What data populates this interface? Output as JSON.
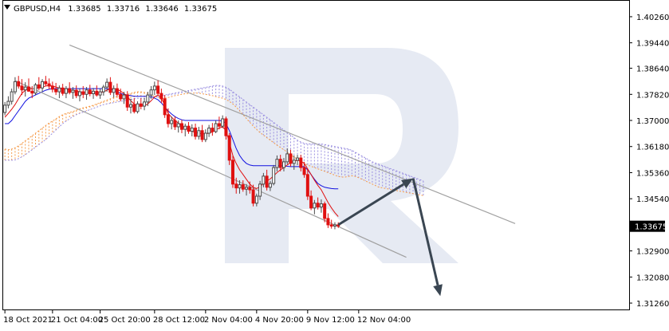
{
  "header": {
    "symbol": "GBPUSD,H4",
    "open": "1.33685",
    "high": "1.33716",
    "low": "1.33646",
    "close": "1.33675"
  },
  "icons": {
    "collapse": "triangle-down-icon",
    "watermark": "r-logo-watermark"
  },
  "colors": {
    "bull_candle": "#4a4a4a",
    "bear_candle": "#e01010",
    "tenkan": "#e01010",
    "kijun": "#1010e0",
    "cloud_a": "#f59b4a",
    "cloud_b": "#9a8fe0",
    "channel": "#a0a0a0",
    "arrow": "#3a4652",
    "watermark": "#dde3ef"
  },
  "chart_data": {
    "type": "candlestick",
    "symbol": "GBPUSD",
    "timeframe": "H4",
    "current_price": 1.33675,
    "current_price_label": "1.33675",
    "y_tick_labels": [
      "1.40260",
      "1.39440",
      "1.38640",
      "1.37820",
      "1.37000",
      "1.36180",
      "1.35360",
      "1.34540",
      "1.33675",
      "1.32900",
      "1.32080",
      "1.31260"
    ],
    "y_ticks": [
      1.4026,
      1.3944,
      1.3864,
      1.3782,
      1.37,
      1.3618,
      1.3536,
      1.3454,
      1.329,
      1.3208,
      1.3126
    ],
    "ylim": [
      1.3106,
      1.4076
    ],
    "x_tick_labels": [
      "18 Oct 2021",
      "21 Oct 04:00",
      "25 Oct 20:00",
      "28 Oct 12:00",
      "2 Nov 04:00",
      "4 Nov 20:00",
      "9 Nov 12:00",
      "12 Nov 04:00"
    ],
    "x_tick_bars": [
      0,
      14,
      28,
      44,
      59,
      74,
      89,
      104
    ],
    "total_slots": 184,
    "candles": [
      [
        1.3725,
        1.3758,
        1.3716,
        1.3748
      ],
      [
        1.3748,
        1.3776,
        1.3738,
        1.376
      ],
      [
        1.376,
        1.38,
        1.375,
        1.379
      ],
      [
        1.379,
        1.3836,
        1.3782,
        1.3822
      ],
      [
        1.3822,
        1.384,
        1.38,
        1.3808
      ],
      [
        1.3808,
        1.383,
        1.378,
        1.3796
      ],
      [
        1.3796,
        1.382,
        1.3775,
        1.3805
      ],
      [
        1.3805,
        1.3832,
        1.379,
        1.3792
      ],
      [
        1.3792,
        1.3808,
        1.377,
        1.3786
      ],
      [
        1.3786,
        1.3818,
        1.378,
        1.3812
      ],
      [
        1.3812,
        1.3836,
        1.3795,
        1.3802
      ],
      [
        1.3802,
        1.383,
        1.379,
        1.3822
      ],
      [
        1.3822,
        1.384,
        1.3808,
        1.3815
      ],
      [
        1.3815,
        1.3832,
        1.3798,
        1.3808
      ],
      [
        1.3808,
        1.3822,
        1.3788,
        1.3798
      ],
      [
        1.3798,
        1.3818,
        1.378,
        1.379
      ],
      [
        1.379,
        1.381,
        1.377,
        1.3802
      ],
      [
        1.3802,
        1.3815,
        1.3778,
        1.3785
      ],
      [
        1.3785,
        1.3808,
        1.377,
        1.38
      ],
      [
        1.38,
        1.382,
        1.3782,
        1.3788
      ],
      [
        1.3788,
        1.3805,
        1.3768,
        1.3795
      ],
      [
        1.3795,
        1.381,
        1.377,
        1.3778
      ],
      [
        1.3778,
        1.38,
        1.376,
        1.379
      ],
      [
        1.379,
        1.3808,
        1.377,
        1.3782
      ],
      [
        1.3782,
        1.3805,
        1.3765,
        1.3796
      ],
      [
        1.3796,
        1.3812,
        1.3776,
        1.3784
      ],
      [
        1.3784,
        1.3802,
        1.3768,
        1.3792
      ],
      [
        1.3792,
        1.381,
        1.3775,
        1.378
      ],
      [
        1.378,
        1.38,
        1.3768,
        1.379
      ],
      [
        1.379,
        1.3812,
        1.3778,
        1.3805
      ],
      [
        1.3805,
        1.3832,
        1.379,
        1.382
      ],
      [
        1.382,
        1.3836,
        1.378,
        1.3788
      ],
      [
        1.3788,
        1.381,
        1.3772,
        1.38
      ],
      [
        1.38,
        1.3816,
        1.3775,
        1.3782
      ],
      [
        1.3782,
        1.38,
        1.376,
        1.3768
      ],
      [
        1.3768,
        1.379,
        1.3752,
        1.378
      ],
      [
        1.378,
        1.3792,
        1.373,
        1.3742
      ],
      [
        1.3742,
        1.3768,
        1.3722,
        1.375
      ],
      [
        1.375,
        1.377,
        1.3722,
        1.3728
      ],
      [
        1.3728,
        1.376,
        1.3722,
        1.3752
      ],
      [
        1.3752,
        1.377,
        1.3735,
        1.3745
      ],
      [
        1.3745,
        1.377,
        1.3732,
        1.3758
      ],
      [
        1.3758,
        1.379,
        1.3745,
        1.378
      ],
      [
        1.378,
        1.3808,
        1.3768,
        1.3796
      ],
      [
        1.3796,
        1.3822,
        1.378,
        1.3808
      ],
      [
        1.3808,
        1.3826,
        1.3778,
        1.3785
      ],
      [
        1.3785,
        1.38,
        1.3755,
        1.3768
      ],
      [
        1.3768,
        1.378,
        1.3708,
        1.3718
      ],
      [
        1.3718,
        1.3738,
        1.3678,
        1.369
      ],
      [
        1.369,
        1.3712,
        1.3672,
        1.37
      ],
      [
        1.37,
        1.3712,
        1.367,
        1.368
      ],
      [
        1.368,
        1.37,
        1.3662,
        1.369
      ],
      [
        1.369,
        1.3702,
        1.366,
        1.3672
      ],
      [
        1.3672,
        1.369,
        1.365,
        1.3682
      ],
      [
        1.3682,
        1.3695,
        1.3658,
        1.3666
      ],
      [
        1.3666,
        1.3688,
        1.365,
        1.3676
      ],
      [
        1.3676,
        1.369,
        1.364,
        1.365
      ],
      [
        1.365,
        1.368,
        1.364,
        1.3668
      ],
      [
        1.3668,
        1.3686,
        1.3632,
        1.364
      ],
      [
        1.364,
        1.3672,
        1.3632,
        1.366
      ],
      [
        1.366,
        1.3686,
        1.3648,
        1.3676
      ],
      [
        1.3676,
        1.3692,
        1.3652,
        1.3665
      ],
      [
        1.3665,
        1.37,
        1.366,
        1.369
      ],
      [
        1.369,
        1.3712,
        1.3672,
        1.3682
      ],
      [
        1.3682,
        1.3716,
        1.3676,
        1.3705
      ],
      [
        1.3705,
        1.3712,
        1.364,
        1.3652
      ],
      [
        1.3652,
        1.366,
        1.356,
        1.3575
      ],
      [
        1.3575,
        1.359,
        1.3488,
        1.35
      ],
      [
        1.35,
        1.352,
        1.347,
        1.3488
      ],
      [
        1.3488,
        1.3512,
        1.347,
        1.3498
      ],
      [
        1.3498,
        1.3512,
        1.3476,
        1.3484
      ],
      [
        1.3484,
        1.35,
        1.3464,
        1.349
      ],
      [
        1.349,
        1.3508,
        1.347,
        1.3482
      ],
      [
        1.3482,
        1.3498,
        1.343,
        1.344
      ],
      [
        1.344,
        1.347,
        1.343,
        1.3462
      ],
      [
        1.3462,
        1.351,
        1.345,
        1.35
      ],
      [
        1.35,
        1.3535,
        1.349,
        1.3525
      ],
      [
        1.3525,
        1.3545,
        1.348,
        1.349
      ],
      [
        1.349,
        1.351,
        1.3478,
        1.3502
      ],
      [
        1.3502,
        1.356,
        1.3496,
        1.3552
      ],
      [
        1.3552,
        1.359,
        1.354,
        1.3578
      ],
      [
        1.3578,
        1.3592,
        1.354,
        1.3552
      ],
      [
        1.3552,
        1.3582,
        1.354,
        1.357
      ],
      [
        1.357,
        1.3612,
        1.3562,
        1.3595
      ],
      [
        1.3595,
        1.3608,
        1.3555,
        1.3565
      ],
      [
        1.3565,
        1.359,
        1.3545,
        1.3575
      ],
      [
        1.3575,
        1.3592,
        1.356,
        1.3582
      ],
      [
        1.3582,
        1.3592,
        1.354,
        1.3552
      ],
      [
        1.3552,
        1.357,
        1.352,
        1.353
      ],
      [
        1.353,
        1.3548,
        1.345,
        1.3462
      ],
      [
        1.3462,
        1.348,
        1.3418,
        1.3425
      ],
      [
        1.3425,
        1.345,
        1.3405,
        1.344
      ],
      [
        1.344,
        1.3458,
        1.342,
        1.3428
      ],
      [
        1.3428,
        1.3452,
        1.341,
        1.3438
      ],
      [
        1.3438,
        1.3445,
        1.338,
        1.3392
      ],
      [
        1.3392,
        1.3408,
        1.3362,
        1.3372
      ],
      [
        1.3372,
        1.3388,
        1.336,
        1.3368
      ],
      [
        1.3368,
        1.338,
        1.3358,
        1.3372
      ],
      [
        1.3372,
        1.338,
        1.3362,
        1.3368
      ]
    ],
    "tenkan": [
      1.371,
      1.3722,
      1.3735,
      1.375,
      1.3768,
      1.3785,
      1.3795,
      1.3798,
      1.38,
      1.38,
      1.3802,
      1.3805,
      1.3808,
      1.381,
      1.3808,
      1.3805,
      1.3802,
      1.38,
      1.3798,
      1.3796,
      1.3795,
      1.3793,
      1.379,
      1.3789,
      1.3788,
      1.3787,
      1.3786,
      1.3786,
      1.3787,
      1.379,
      1.3795,
      1.38,
      1.38,
      1.3798,
      1.3792,
      1.3785,
      1.3775,
      1.3762,
      1.3752,
      1.3746,
      1.3744,
      1.3746,
      1.3752,
      1.3762,
      1.3774,
      1.378,
      1.377,
      1.3748,
      1.3722,
      1.371,
      1.37,
      1.3692,
      1.3684,
      1.3676,
      1.367,
      1.3666,
      1.3662,
      1.366,
      1.3658,
      1.3658,
      1.366,
      1.3664,
      1.367,
      1.3676,
      1.368,
      1.3668,
      1.363,
      1.359,
      1.3565,
      1.3545,
      1.353,
      1.3515,
      1.35,
      1.349,
      1.3486,
      1.3492,
      1.3502,
      1.351,
      1.3516,
      1.3526,
      1.3536,
      1.3545,
      1.3552,
      1.356,
      1.3568,
      1.3572,
      1.3575,
      1.3572,
      1.3565,
      1.3548,
      1.353,
      1.3512,
      1.3496,
      1.3482,
      1.3462,
      1.3442,
      1.3425,
      1.341,
      1.3398
    ],
    "kijun": [
      1.369,
      1.369,
      1.37,
      1.3715,
      1.373,
      1.3745,
      1.376,
      1.377,
      1.3775,
      1.378,
      1.3785,
      1.379,
      1.3795,
      1.3798,
      1.38,
      1.38,
      1.38,
      1.38,
      1.38,
      1.38,
      1.38,
      1.38,
      1.38,
      1.38,
      1.38,
      1.38,
      1.38,
      1.38,
      1.38,
      1.38,
      1.38,
      1.3798,
      1.3795,
      1.379,
      1.3785,
      1.3782,
      1.378,
      1.3778,
      1.3776,
      1.3776,
      1.3776,
      1.3776,
      1.3776,
      1.3775,
      1.377,
      1.3765,
      1.3755,
      1.3742,
      1.373,
      1.372,
      1.3712,
      1.3706,
      1.3702,
      1.37,
      1.37,
      1.37,
      1.37,
      1.37,
      1.37,
      1.37,
      1.37,
      1.37,
      1.37,
      1.37,
      1.3698,
      1.369,
      1.3668,
      1.364,
      1.3612,
      1.359,
      1.3575,
      1.3565,
      1.356,
      1.3558,
      1.3558,
      1.3558,
      1.3558,
      1.3558,
      1.3558,
      1.3558,
      1.3558,
      1.3558,
      1.3558,
      1.3556,
      1.3555,
      1.3555,
      1.3555,
      1.3555,
      1.3555,
      1.3545,
      1.353,
      1.3515,
      1.3502,
      1.3495,
      1.349,
      1.3488,
      1.3486,
      1.3485,
      1.3485
    ],
    "cloud": {
      "start_bar": 0,
      "span_a": [
        1.361,
        1.3608,
        1.361,
        1.3614,
        1.362,
        1.3628,
        1.3636,
        1.3644,
        1.3652,
        1.366,
        1.3668,
        1.3676,
        1.3684,
        1.3692,
        1.3698,
        1.3705,
        1.3712,
        1.3718,
        1.3722,
        1.3725,
        1.3728,
        1.3732,
        1.3736,
        1.374,
        1.3742,
        1.3745,
        1.3748,
        1.3752,
        1.3756,
        1.376,
        1.3764,
        1.3768,
        1.3772,
        1.3775,
        1.3778,
        1.378,
        1.3782,
        1.3785,
        1.3788,
        1.379,
        1.379,
        1.3788,
        1.3785,
        1.378,
        1.3776,
        1.3772,
        1.377,
        1.377,
        1.3772,
        1.3775,
        1.3778,
        1.378,
        1.3782,
        1.3784,
        1.3785,
        1.3786,
        1.3786,
        1.3786,
        1.3784,
        1.3782,
        1.378,
        1.3778,
        1.3775,
        1.3772,
        1.377,
        1.3766,
        1.376,
        1.3752,
        1.3742,
        1.373,
        1.3718,
        1.3706,
        1.3694,
        1.3682,
        1.3672,
        1.3662,
        1.3654,
        1.3646,
        1.3638,
        1.363,
        1.3622,
        1.3615,
        1.3608,
        1.36,
        1.3592,
        1.3585,
        1.3578,
        1.3572,
        1.3566,
        1.356,
        1.3556,
        1.3552,
        1.3548,
        1.3544,
        1.354,
        1.3536,
        1.3532,
        1.3528,
        1.3524,
        1.3522,
        1.3522,
        1.3524,
        1.3526,
        1.3524,
        1.352,
        1.3515,
        1.351,
        1.3505,
        1.35,
        1.3495,
        1.349,
        1.3488,
        1.3486,
        1.3484,
        1.3482,
        1.348,
        1.3478,
        1.3476,
        1.3474,
        1.3472,
        1.347,
        1.3468,
        1.3466,
        1.3464
      ],
      "span_b": [
        1.3575,
        1.3575,
        1.3575,
        1.3576,
        1.358,
        1.3586,
        1.3592,
        1.36,
        1.3608,
        1.3616,
        1.3624,
        1.3632,
        1.364,
        1.365,
        1.366,
        1.367,
        1.368,
        1.369,
        1.3698,
        1.3705,
        1.3712,
        1.3718,
        1.3722,
        1.3726,
        1.373,
        1.3734,
        1.3738,
        1.3742,
        1.3746,
        1.375,
        1.3752,
        1.3754,
        1.3756,
        1.3758,
        1.376,
        1.3762,
        1.3764,
        1.3766,
        1.3768,
        1.377,
        1.377,
        1.377,
        1.377,
        1.3772,
        1.3774,
        1.3776,
        1.3778,
        1.378,
        1.3782,
        1.3784,
        1.3786,
        1.3788,
        1.379,
        1.3792,
        1.3794,
        1.3796,
        1.3798,
        1.38,
        1.3802,
        1.3804,
        1.3806,
        1.3808,
        1.381,
        1.381,
        1.3808,
        1.3804,
        1.3798,
        1.379,
        1.3782,
        1.3774,
        1.3766,
        1.3758,
        1.375,
        1.3742,
        1.3734,
        1.3726,
        1.3718,
        1.371,
        1.3702,
        1.3694,
        1.3686,
        1.3678,
        1.367,
        1.3662,
        1.3654,
        1.3646,
        1.3638,
        1.3632,
        1.3628,
        1.3626,
        1.3626,
        1.3626,
        1.3626,
        1.3626,
        1.3624,
        1.3622,
        1.362,
        1.3618,
        1.3616,
        1.3614,
        1.3612,
        1.361,
        1.3606,
        1.36,
        1.3594,
        1.3588,
        1.3582,
        1.3576,
        1.357,
        1.3566,
        1.3562,
        1.3558,
        1.3554,
        1.355,
        1.3546,
        1.3542,
        1.3538,
        1.3534,
        1.353,
        1.3526,
        1.3522,
        1.3518,
        1.3514,
        1.351
      ]
    },
    "channel": {
      "upper": {
        "from": [
          19,
          1.3937
        ],
        "to": [
          150,
          1.3376
        ]
      },
      "lower": {
        "from": [
          3,
          1.3825
        ],
        "to": [
          118,
          1.327
        ]
      }
    },
    "forecast_path": [
      [
        98,
        1.3372
      ],
      [
        120,
        1.3518
      ],
      [
        128,
        1.3148
      ]
    ]
  }
}
